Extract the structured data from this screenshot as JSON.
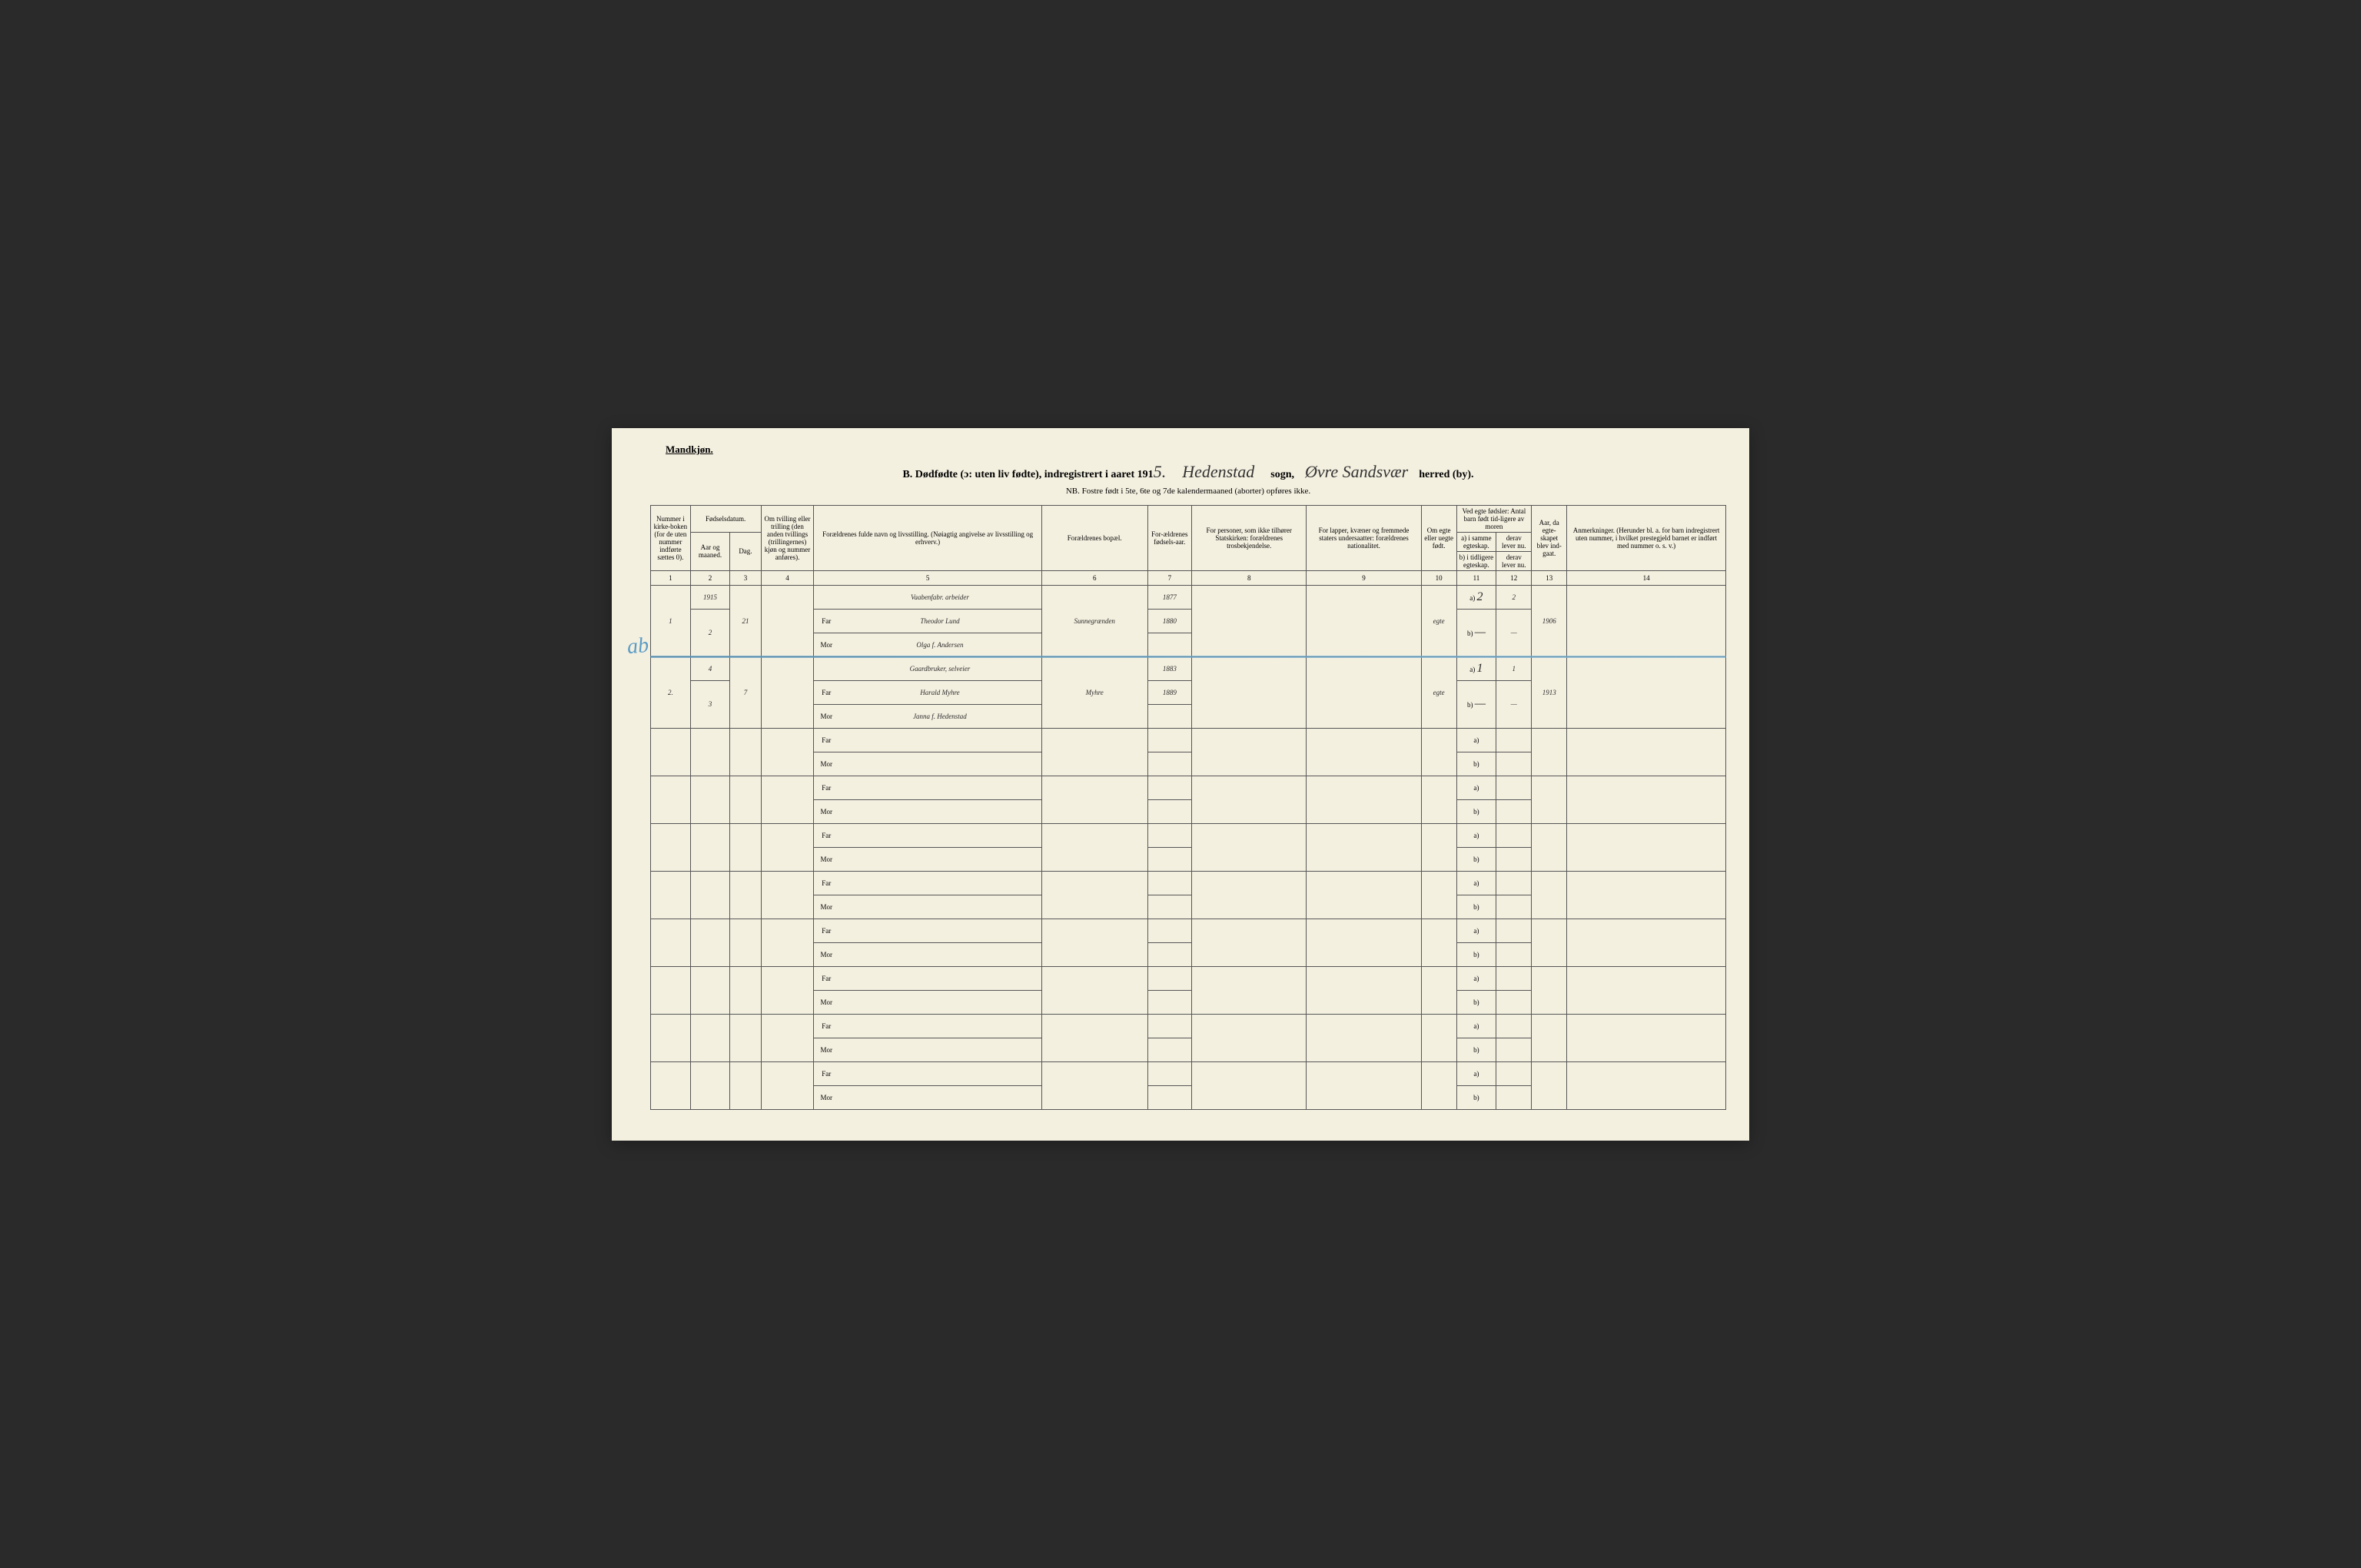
{
  "page": {
    "gender_header": "Mandkjøn.",
    "title_prefix": "B.  Dødfødte (ɔ: uten liv fødte), indregistrert i aaret 191",
    "year_suffix": "5.",
    "sogn_hw": "Hedenstad",
    "sogn_label": "sogn,",
    "herred_hw": "Øvre Sandsvær",
    "herred_label": "herred (by).",
    "subtitle": "NB. Fostre født i 5te, 6te og 7de kalendermaaned (aborter) opføres ikke."
  },
  "columns": {
    "c1": "Nummer i kirke-boken (for de uten nummer indførte sættes 0).",
    "c2_group": "Fødselsdatum.",
    "c2a": "Aar og maaned.",
    "c2b": "Dag.",
    "c3": "Om tvilling eller trilling (den anden tvillings (trillingernes) kjøn og nummer anføres).",
    "c4": "Forældrenes fulde navn og livsstilling. (Nøiagtig angivelse av livsstilling og erhverv.)",
    "c5": "Forældrenes bopæl.",
    "c6": "For-ældrenes fødsels-aar.",
    "c7": "For personer, som ikke tilhører Statskirken: forældrenes trosbekjendelse.",
    "c8": "For lapper, kvæner og fremmede staters undersaatter: forældrenes nationalitet.",
    "c9": "Om egte eller uegte født.",
    "c10_group": "Ved egte fødsler: Antal barn født tid-ligere av moren",
    "c10a": "a) i samme egteskap.",
    "c10b": "derav lever nu.",
    "c10c": "b) i tidligere egteskap.",
    "c10d": "derav lever nu.",
    "c11": "Aar, da egte-skapet blev ind-gaat.",
    "c12": "Anmerkninger. (Herunder bl. a. for barn indregistrert uten nummer, i hvilket prestegjeld barnet er indført med nummer o. s. v.)"
  },
  "colnums": [
    "1",
    "2",
    "3",
    "4",
    "",
    "5",
    "6",
    "7",
    "8",
    "9",
    "10",
    "11",
    "12",
    "13",
    "14"
  ],
  "labels": {
    "far": "Far",
    "mor": "Mor",
    "a": "a)",
    "b": "b)"
  },
  "entries": [
    {
      "num": "1",
      "year_month_top": "1915",
      "year_month": "2",
      "day": "21",
      "occupation": "Vaabenfabr. arbeider",
      "far_name": "Theodor Lund",
      "mor_name": "Olga f. Andersen",
      "bopael": "Sunnegrænden",
      "far_year": "1877",
      "mor_year": "1880",
      "egte": "egte",
      "a_val": "2",
      "a_lever": "2",
      "b_val": "—",
      "b_lever": "—",
      "egte_aar": "1906"
    },
    {
      "num": "2.",
      "year_month_top": "4",
      "year_month": "3",
      "day": "7",
      "occupation": "Gaardbruker, selveier",
      "far_name": "Harald Myhre",
      "mor_name": "Janna f. Hedenstad",
      "bopael": "Myhre",
      "far_year": "1883",
      "mor_year": "1889",
      "egte": "egte",
      "a_val": "1",
      "a_lever": "1",
      "b_val": "—",
      "b_lever": "—",
      "egte_aar": "1913"
    }
  ],
  "annotation": {
    "blue_mark": "ab"
  },
  "styling": {
    "page_bg": "#f4f0e0",
    "border_color": "#555555",
    "handwriting_color": "#2a2a2a",
    "blue_pencil": "#5a9bc4",
    "header_font_size": 9,
    "handwriting_font_size": 16,
    "empty_rows": 8
  }
}
